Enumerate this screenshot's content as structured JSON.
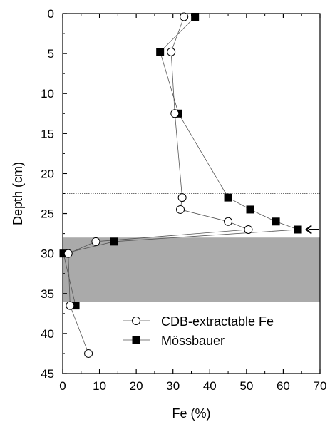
{
  "chart_data": {
    "type": "scatter",
    "orientation": "depth-profile",
    "xlabel": "Fe (%)",
    "ylabel": "Depth (cm)",
    "xlim": [
      0,
      70
    ],
    "ylim": [
      0,
      45
    ],
    "y_inverted": true,
    "x_ticks": [
      0,
      10,
      20,
      30,
      40,
      50,
      60,
      70
    ],
    "y_ticks": [
      0,
      5,
      10,
      15,
      20,
      25,
      30,
      35,
      40,
      45
    ],
    "x_tick_labels": [
      "0",
      "10",
      "20",
      "30",
      "40",
      "50",
      "60",
      "70"
    ],
    "y_tick_labels": [
      "0",
      "5",
      "10",
      "15",
      "20",
      "25",
      "30",
      "35",
      "40",
      "45"
    ],
    "x_ticks_position": "top-and-bottom",
    "grid": false,
    "legend_position": "lower-right",
    "series": [
      {
        "name": "CDB-extractable Fe",
        "marker": "open-circle",
        "points": [
          {
            "x": 33,
            "y": 0.4
          },
          {
            "x": 29.5,
            "y": 4.8
          },
          {
            "x": 30.5,
            "y": 12.5
          },
          {
            "x": 32.5,
            "y": 23
          },
          {
            "x": 32,
            "y": 24.5
          },
          {
            "x": 45,
            "y": 26
          },
          {
            "x": 50.5,
            "y": 27
          },
          {
            "x": 9,
            "y": 28.5
          },
          {
            "x": 1.5,
            "y": 30
          },
          {
            "x": 2,
            "y": 36.5
          },
          {
            "x": 7,
            "y": 42.5
          }
        ]
      },
      {
        "name": "Mössbauer",
        "marker": "filled-square",
        "points": [
          {
            "x": 36,
            "y": 0.4
          },
          {
            "x": 26.5,
            "y": 4.8
          },
          {
            "x": 31.5,
            "y": 12.5
          },
          {
            "x": 45,
            "y": 23
          },
          {
            "x": 51,
            "y": 24.5
          },
          {
            "x": 58,
            "y": 26
          },
          {
            "x": 64,
            "y": 27
          },
          {
            "x": 14,
            "y": 28.5
          },
          {
            "x": 0.2,
            "y": 30
          },
          {
            "x": 3.5,
            "y": 36.5
          }
        ]
      }
    ],
    "annotations": [
      {
        "type": "horizontal-dotted-line",
        "y": 22.5
      },
      {
        "type": "shaded-band",
        "y_from": 28,
        "y_to": 36,
        "color": "#aaaaaa"
      },
      {
        "type": "arrow-pointing-left",
        "x": 67,
        "y": 27
      }
    ]
  }
}
